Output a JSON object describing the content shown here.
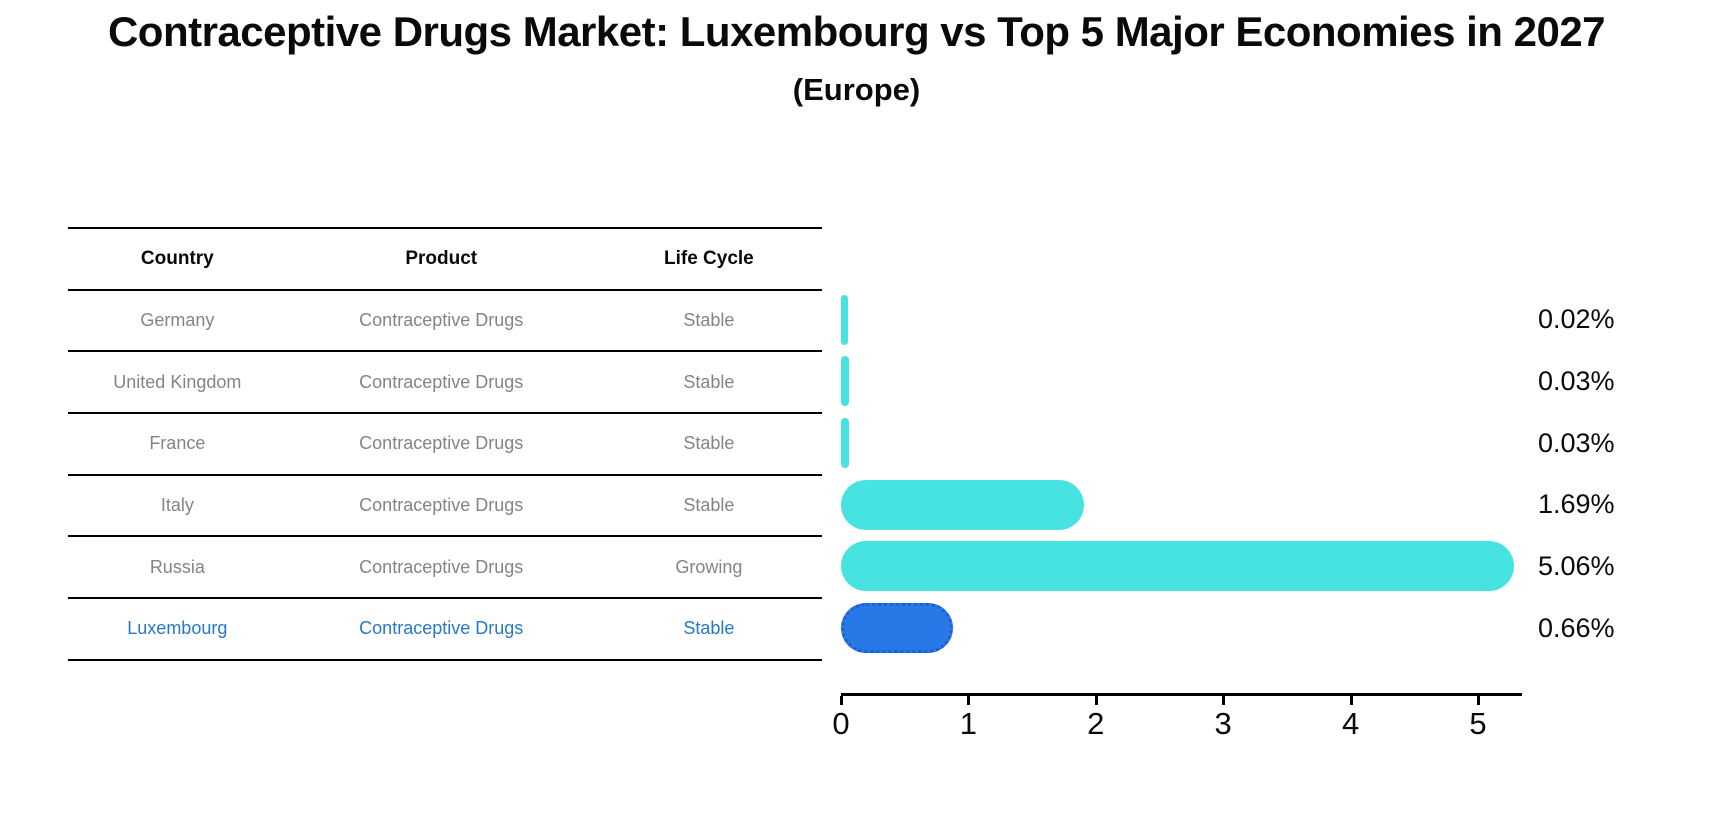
{
  "title": "Contraceptive Drugs Market: Luxembourg vs Top 5 Major Economies in 2027",
  "subtitle": "(Europe)",
  "table": {
    "headers": [
      "Country",
      "Product",
      "Life Cycle"
    ],
    "rows": [
      {
        "country": "Germany",
        "product": "Contraceptive Drugs",
        "life_cycle": "Stable",
        "highlight": false
      },
      {
        "country": "United Kingdom",
        "product": "Contraceptive Drugs",
        "life_cycle": "Stable",
        "highlight": false
      },
      {
        "country": "France",
        "product": "Contraceptive Drugs",
        "life_cycle": "Stable",
        "highlight": false
      },
      {
        "country": "Italy",
        "product": "Contraceptive Drugs",
        "life_cycle": "Stable",
        "highlight": false
      },
      {
        "country": "Russia",
        "product": "Contraceptive Drugs",
        "life_cycle": "Growing",
        "highlight": false
      },
      {
        "country": "Luxembourg",
        "product": "Contraceptive Drugs",
        "life_cycle": "Stable",
        "highlight": true
      }
    ]
  },
  "chart_data": {
    "type": "bar",
    "orientation": "horizontal",
    "title": "Contraceptive Drugs Market: Luxembourg vs Top 5 Major Economies in 2027",
    "subtitle": "(Europe)",
    "categories": [
      "Germany",
      "United Kingdom",
      "France",
      "Italy",
      "Russia",
      "Luxembourg"
    ],
    "values": [
      0.02,
      0.03,
      0.03,
      1.69,
      5.06,
      0.66
    ],
    "value_labels": [
      "0.02%",
      "0.03%",
      "0.03%",
      "1.69%",
      "5.06%",
      "0.66%"
    ],
    "xlabel": "",
    "ylabel": "",
    "xlim": [
      0,
      5.33
    ],
    "xticks": [
      0,
      1,
      2,
      3,
      4,
      5
    ],
    "grid": false,
    "legend": false,
    "highlight_index": 5,
    "bar_color": "#46e3e0",
    "highlight_color": "#2878e8",
    "highlight_border_color": "#1c5fd0",
    "text_color": "#0a0a0a",
    "muted_text_color": "#848484",
    "highlight_text_color": "#2878c8"
  }
}
